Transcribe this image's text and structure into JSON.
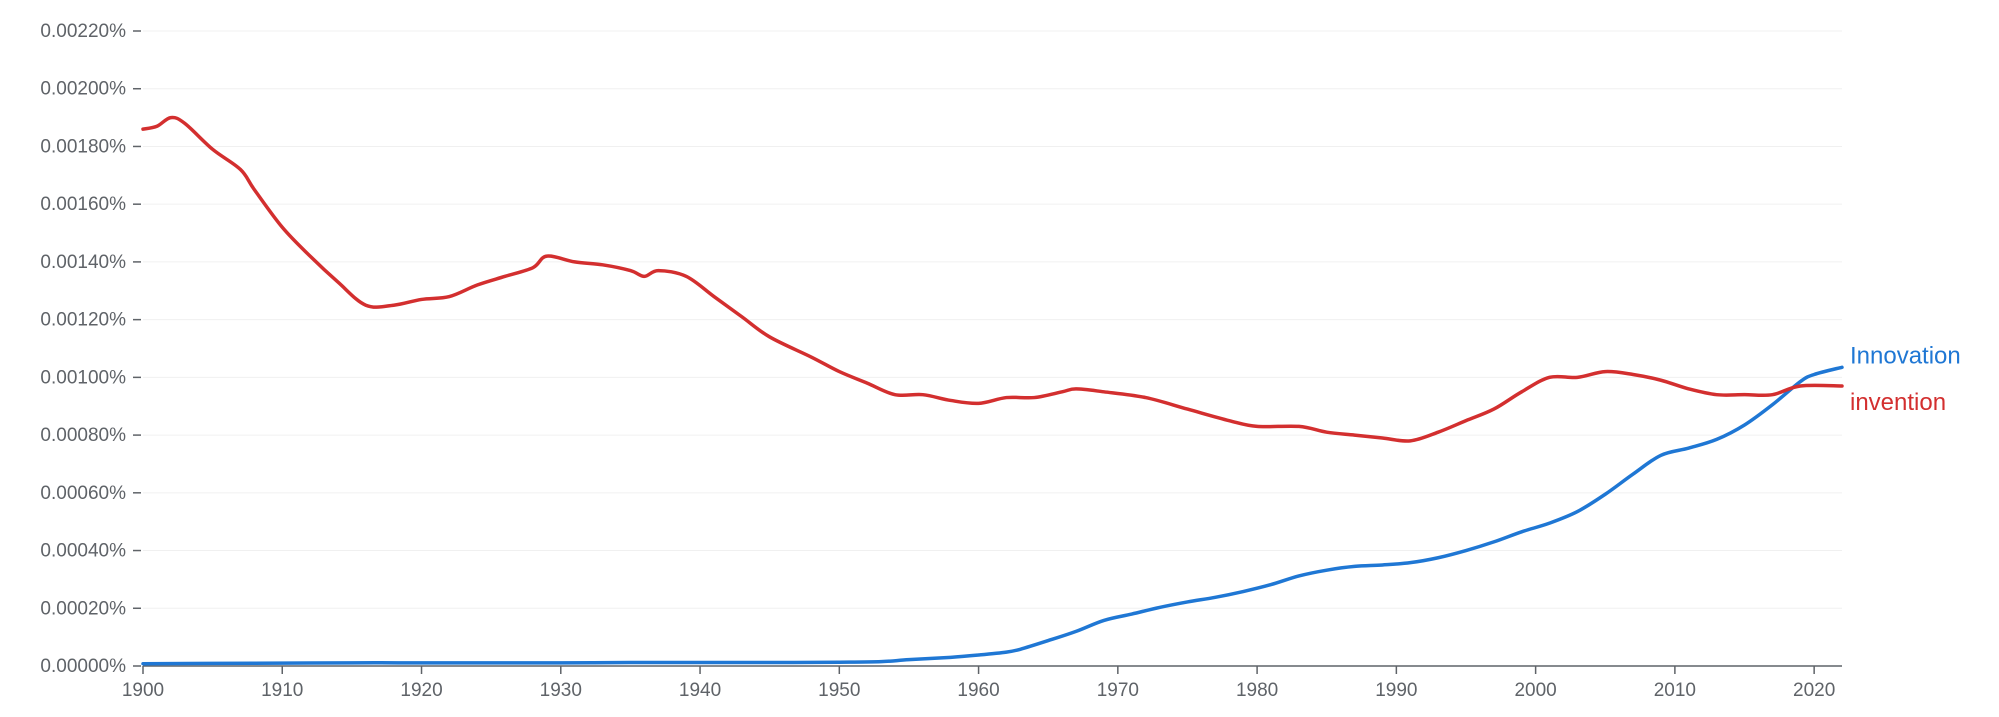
{
  "chart_data": {
    "type": "line",
    "title": "",
    "xlabel": "",
    "ylabel": "",
    "xlim": [
      1900,
      2022
    ],
    "ylim": [
      0,
      0.0022
    ],
    "grid": true,
    "legend": "direct labels at right end of lines",
    "x_ticks": [
      1900,
      1910,
      1920,
      1930,
      1940,
      1950,
      1960,
      1970,
      1980,
      1990,
      2000,
      2010,
      2020
    ],
    "x_tick_labels": [
      "1900",
      "1910",
      "1920",
      "1930",
      "1940",
      "1950",
      "1960",
      "1970",
      "1980",
      "1990",
      "2000",
      "2010",
      "2020"
    ],
    "y_ticks": [
      0,
      0.0002,
      0.0004,
      0.0006,
      0.0008,
      0.001,
      0.0012,
      0.0014,
      0.0016,
      0.0018,
      0.002,
      0.0022
    ],
    "y_tick_labels": [
      "0.00000%",
      "0.00020%",
      "0.00040%",
      "0.00060%",
      "0.00080%",
      "0.00100%",
      "0.00120%",
      "0.00140%",
      "0.00160%",
      "0.00180%",
      "0.00200%",
      "0.00220%"
    ],
    "series": [
      {
        "name": "Innovation",
        "color": "#1f77d4",
        "points": [
          [
            1900,
            8e-06
          ],
          [
            1905,
            9e-06
          ],
          [
            1910,
            1e-05
          ],
          [
            1915,
            1.1e-05
          ],
          [
            1920,
            1.1e-05
          ],
          [
            1925,
            1.1e-05
          ],
          [
            1930,
            1.1e-05
          ],
          [
            1935,
            1.2e-05
          ],
          [
            1940,
            1.2e-05
          ],
          [
            1945,
            1.2e-05
          ],
          [
            1950,
            1.3e-05
          ],
          [
            1953,
            1.5e-05
          ],
          [
            1955,
            2.2e-05
          ],
          [
            1958,
            3e-05
          ],
          [
            1960,
            3.8e-05
          ],
          [
            1962,
            4.8e-05
          ],
          [
            1963,
            5.8e-05
          ],
          [
            1965,
            8.8e-05
          ],
          [
            1967,
            0.00012
          ],
          [
            1969,
            0.000158
          ],
          [
            1971,
            0.00018
          ],
          [
            1973,
            0.000203
          ],
          [
            1975,
            0.000222
          ],
          [
            1977,
            0.000238
          ],
          [
            1979,
            0.000258
          ],
          [
            1981,
            0.000282
          ],
          [
            1983,
            0.000312
          ],
          [
            1985,
            0.000332
          ],
          [
            1987,
            0.000345
          ],
          [
            1989,
            0.00035
          ],
          [
            1991,
            0.000358
          ],
          [
            1993,
            0.000375
          ],
          [
            1995,
            0.0004
          ],
          [
            1997,
            0.00043
          ],
          [
            1999,
            0.000465
          ],
          [
            2001,
            0.000495
          ],
          [
            2003,
            0.000535
          ],
          [
            2005,
            0.000595
          ],
          [
            2007,
            0.000665
          ],
          [
            2009,
            0.00073
          ],
          [
            2011,
            0.000755
          ],
          [
            2013,
            0.000785
          ],
          [
            2015,
            0.000835
          ],
          [
            2017,
            0.000905
          ],
          [
            2019,
            0.000985
          ],
          [
            2020,
            0.00101
          ],
          [
            2022,
            0.001035
          ]
        ]
      },
      {
        "name": "invention",
        "color": "#d32f2f",
        "points": [
          [
            1900,
            0.00186
          ],
          [
            1901,
            0.00187
          ],
          [
            1902,
            0.0019
          ],
          [
            1903,
            0.00188
          ],
          [
            1905,
            0.00179
          ],
          [
            1907,
            0.00172
          ],
          [
            1908,
            0.00165
          ],
          [
            1910,
            0.00152
          ],
          [
            1912,
            0.00142
          ],
          [
            1914,
            0.00133
          ],
          [
            1916,
            0.00125
          ],
          [
            1918,
            0.00125
          ],
          [
            1920,
            0.00127
          ],
          [
            1922,
            0.00128
          ],
          [
            1924,
            0.00132
          ],
          [
            1926,
            0.00135
          ],
          [
            1928,
            0.00138
          ],
          [
            1929,
            0.00142
          ],
          [
            1931,
            0.0014
          ],
          [
            1933,
            0.00139
          ],
          [
            1935,
            0.00137
          ],
          [
            1936,
            0.00135
          ],
          [
            1937,
            0.00137
          ],
          [
            1939,
            0.00135
          ],
          [
            1941,
            0.00128
          ],
          [
            1943,
            0.00121
          ],
          [
            1945,
            0.00114
          ],
          [
            1948,
            0.00107
          ],
          [
            1950,
            0.00102
          ],
          [
            1952,
            0.00098
          ],
          [
            1954,
            0.00094
          ],
          [
            1956,
            0.00094
          ],
          [
            1958,
            0.00092
          ],
          [
            1960,
            0.00091
          ],
          [
            1962,
            0.00093
          ],
          [
            1964,
            0.00093
          ],
          [
            1966,
            0.00095
          ],
          [
            1967,
            0.00096
          ],
          [
            1969,
            0.00095
          ],
          [
            1972,
            0.00093
          ],
          [
            1975,
            0.00089
          ],
          [
            1978,
            0.00085
          ],
          [
            1980,
            0.00083
          ],
          [
            1983,
            0.00083
          ],
          [
            1985,
            0.00081
          ],
          [
            1987,
            0.0008
          ],
          [
            1989,
            0.00079
          ],
          [
            1991,
            0.00078
          ],
          [
            1993,
            0.00081
          ],
          [
            1995,
            0.00085
          ],
          [
            1997,
            0.00089
          ],
          [
            1999,
            0.00095
          ],
          [
            2001,
            0.001
          ],
          [
            2003,
            0.001
          ],
          [
            2005,
            0.00102
          ],
          [
            2007,
            0.00101
          ],
          [
            2009,
            0.00099
          ],
          [
            2011,
            0.00096
          ],
          [
            2013,
            0.00094
          ],
          [
            2015,
            0.00094
          ],
          [
            2017,
            0.00094
          ],
          [
            2019,
            0.00097
          ],
          [
            2022,
            0.00097
          ]
        ]
      }
    ]
  }
}
